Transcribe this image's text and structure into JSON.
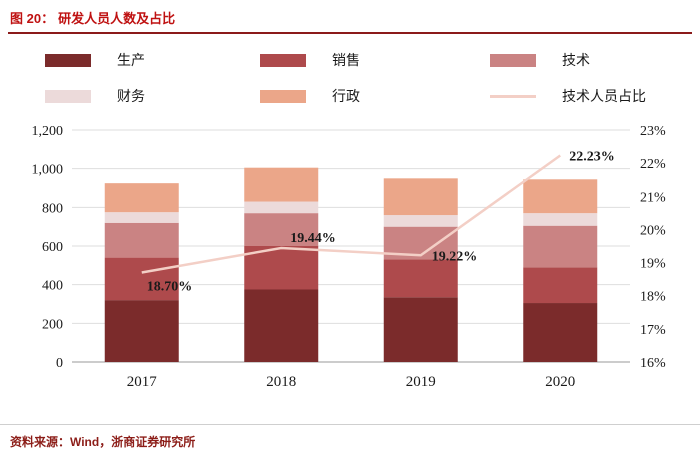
{
  "header": {
    "figure_label": "图 20：",
    "title": "研发人员人数及占比"
  },
  "footer": {
    "source": "资料来源：Wind，浙商证券研究所"
  },
  "chart_data": {
    "type": "bar",
    "stacked": true,
    "grid": true,
    "legend_position": "top",
    "categories": [
      "2017",
      "2018",
      "2019",
      "2020"
    ],
    "series": [
      {
        "name": "生产",
        "color": "#7b2b2b",
        "values": [
          320,
          375,
          335,
          305
        ]
      },
      {
        "name": "销售",
        "color": "#ae4a4c",
        "values": [
          220,
          225,
          195,
          185
        ]
      },
      {
        "name": "技术",
        "color": "#ca8383",
        "values": [
          180,
          170,
          170,
          215
        ]
      },
      {
        "name": "财务",
        "color": "#ecdada",
        "values": [
          55,
          60,
          60,
          65
        ]
      },
      {
        "name": "行政",
        "color": "#eba689",
        "values": [
          150,
          175,
          190,
          175
        ]
      }
    ],
    "line_series": {
      "name": "技术人员占比",
      "color": "#f3cfc6",
      "values": [
        18.7,
        19.44,
        19.22,
        22.23
      ],
      "labels": [
        "18.70%",
        "19.44%",
        "19.22%",
        "22.23%"
      ]
    },
    "left_axis": {
      "min": 0,
      "max": 1200,
      "step": 200,
      "tick_labels": [
        "0",
        "200",
        "400",
        "600",
        "800",
        "1,000",
        "1,200"
      ]
    },
    "right_axis": {
      "min": 16,
      "max": 23,
      "step": 1,
      "tick_labels": [
        "16%",
        "17%",
        "18%",
        "19%",
        "20%",
        "21%",
        "22%",
        "23%"
      ]
    }
  }
}
